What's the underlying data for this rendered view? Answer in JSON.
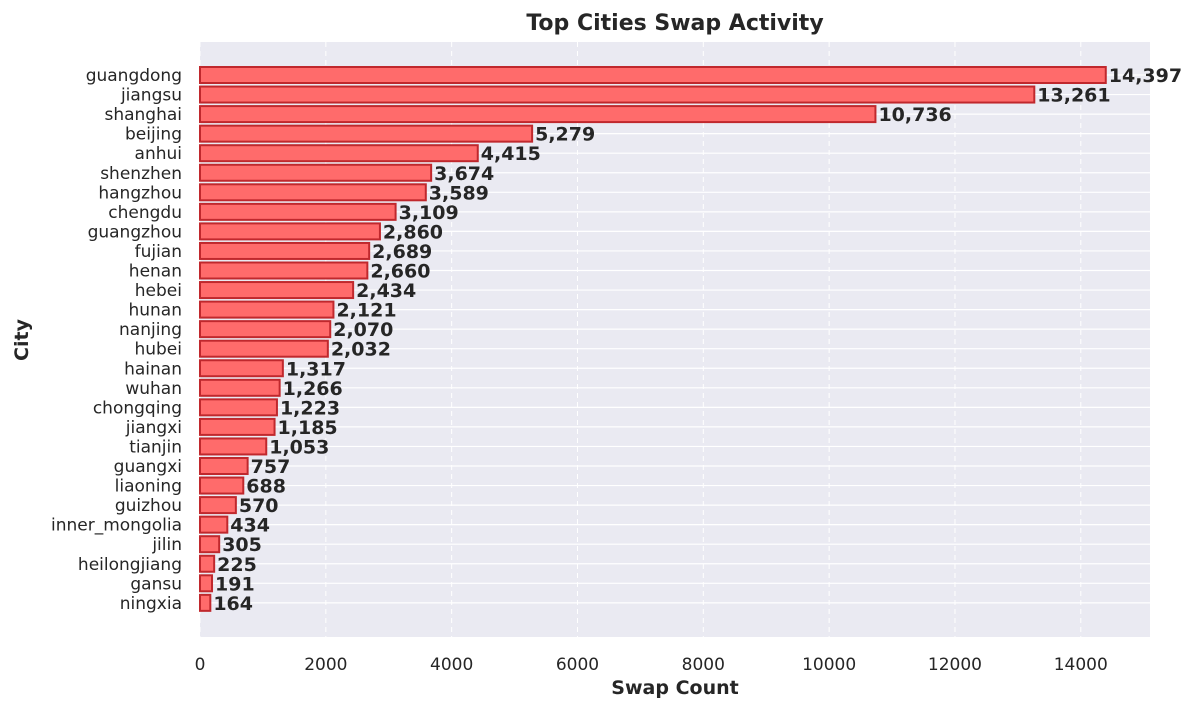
{
  "chart_data": {
    "type": "bar",
    "orientation": "horizontal",
    "title": "Top Cities Swap Activity",
    "xlabel": "Swap Count",
    "ylabel": "City",
    "xlim": [
      0,
      15100
    ],
    "xticks": [
      0,
      2000,
      4000,
      6000,
      8000,
      10000,
      12000,
      14000
    ],
    "grid": true,
    "categories": [
      "guangdong",
      "jiangsu",
      "shanghai",
      "beijing",
      "anhui",
      "shenzhen",
      "hangzhou",
      "chengdu",
      "guangzhou",
      "fujian",
      "henan",
      "hebei",
      "hunan",
      "nanjing",
      "hubei",
      "hainan",
      "wuhan",
      "chongqing",
      "jiangxi",
      "tianjin",
      "guangxi",
      "liaoning",
      "guizhou",
      "inner_mongolia",
      "jilin",
      "heilongjiang",
      "gansu",
      "ningxia"
    ],
    "values": [
      14397,
      13261,
      10736,
      5279,
      4415,
      3674,
      3589,
      3109,
      2860,
      2689,
      2660,
      2434,
      2121,
      2070,
      2032,
      1317,
      1266,
      1223,
      1185,
      1053,
      757,
      688,
      570,
      434,
      305,
      225,
      191,
      164
    ],
    "value_labels": [
      "14,397",
      "13,261",
      "10,736",
      "5,279",
      "4,415",
      "3,674",
      "3,589",
      "3,109",
      "2,860",
      "2,689",
      "2,660",
      "2,434",
      "2,121",
      "2,070",
      "2,032",
      "1,317",
      "1,266",
      "1,223",
      "1,185",
      "1,053",
      "757",
      "688",
      "570",
      "434",
      "305",
      "225",
      "191",
      "164"
    ],
    "colors": {
      "bar_fill": "#ff6b6b",
      "bar_edge": "#c0282d",
      "plot_background": "#eaeaf2",
      "grid": "#ffffff",
      "text": "#262626"
    }
  }
}
